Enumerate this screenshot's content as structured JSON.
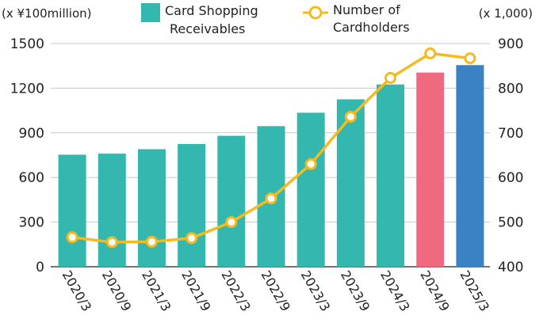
{
  "chart_data": {
    "type": "bar",
    "categories": [
      "2020/3",
      "2020/9",
      "2021/3",
      "2021/9",
      "2022/3",
      "2022/9",
      "2023/3",
      "2023/9",
      "2024/3",
      "2024/9",
      "2025/3"
    ],
    "series": [
      {
        "name": "Card Shopping Receivables",
        "type": "bar",
        "axis": "left",
        "values": [
          753,
          760,
          790,
          825,
          880,
          945,
          1035,
          1125,
          1225,
          1305,
          1355
        ],
        "colors": [
          "#34b7ae",
          "#34b7ae",
          "#34b7ae",
          "#34b7ae",
          "#34b7ae",
          "#34b7ae",
          "#34b7ae",
          "#34b7ae",
          "#34b7ae",
          "#ef6a7e",
          "#3b82c4"
        ]
      },
      {
        "name": "Number of Cardholders",
        "type": "line",
        "axis": "right",
        "values": [
          466,
          455,
          456,
          464,
          500,
          553,
          630,
          736,
          823,
          878,
          867
        ],
        "color": "#f5bb1e"
      }
    ],
    "legend": {
      "placement": "top",
      "bar_label_line1": "Card Shopping",
      "bar_label_line2": "Receivables",
      "line_label_line1": "Number of",
      "line_label_line2": "Cardholders"
    },
    "left_axis": {
      "unit": "(x ¥100million)",
      "ylim": [
        0,
        1500
      ],
      "ticks": [
        0,
        300,
        600,
        900,
        1200,
        1500
      ]
    },
    "right_axis": {
      "unit": "(x 1,000)",
      "ylim": [
        400,
        900
      ],
      "ticks": [
        400,
        500,
        600,
        700,
        800,
        900
      ]
    },
    "grid": true
  }
}
